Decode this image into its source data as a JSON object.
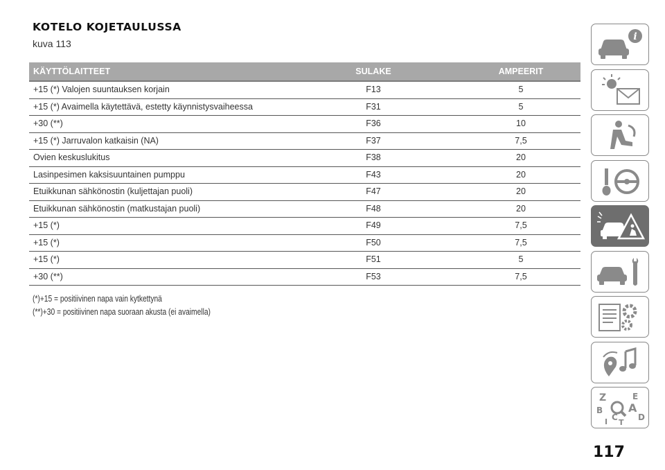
{
  "heading": {
    "title": "KOTELO KOJETAULUSSA",
    "subtitle": "kuva 113"
  },
  "table": {
    "headers": {
      "device": "KÄYTTÖLAITTEET",
      "fuse": "SULAKE",
      "ampere": "AMPEERIT"
    },
    "rows": [
      {
        "device": "+15 (*) Valojen suuntauksen korjain",
        "fuse": "F13",
        "ampere": "5"
      },
      {
        "device": "+15 (*) Avaimella käytettävä, estetty käynnistysvaiheessa",
        "fuse": "F31",
        "ampere": "5"
      },
      {
        "device": "+30 (**)",
        "fuse": "F36",
        "ampere": "10"
      },
      {
        "device": "+15 (*) Jarruvalon katkaisin (NA)",
        "fuse": "F37",
        "ampere": "7,5"
      },
      {
        "device": "Ovien keskuslukitus",
        "fuse": "F38",
        "ampere": "20"
      },
      {
        "device": "Lasinpesimen kaksisuuntainen pumppu",
        "fuse": "F43",
        "ampere": "20"
      },
      {
        "device": "Etuikkunan sähkönostin (kuljettajan puoli)",
        "fuse": "F47",
        "ampere": "20"
      },
      {
        "device": "Etuikkunan sähkönostin (matkustajan puoli)",
        "fuse": "F48",
        "ampere": "20"
      },
      {
        "device": "+15 (*)",
        "fuse": "F49",
        "ampere": "7,5"
      },
      {
        "device": "+15 (*)",
        "fuse": "F50",
        "ampere": "7,5"
      },
      {
        "device": "+15 (*)",
        "fuse": "F51",
        "ampere": "5"
      },
      {
        "device": "+30 (**)",
        "fuse": "F53",
        "ampere": "7,5"
      }
    ]
  },
  "notes": [
    "(*)+15 = positiivinen napa vain kytkettynä",
    "(**)+30 = positiivinen napa suoraan akusta (ei avaimella)"
  ],
  "sidebar": {
    "tabs": [
      {
        "icon": "car-info-icon",
        "active": false
      },
      {
        "icon": "warning-lights-icon",
        "active": false
      },
      {
        "icon": "seat-airbag-icon",
        "active": false
      },
      {
        "icon": "key-steering-wheel-icon",
        "active": false
      },
      {
        "icon": "car-breakdown-icon",
        "active": true
      },
      {
        "icon": "car-wrench-icon",
        "active": false
      },
      {
        "icon": "specs-gear-icon",
        "active": false
      },
      {
        "icon": "multimedia-icon",
        "active": false
      },
      {
        "icon": "alphabetical-index-icon",
        "active": false
      }
    ],
    "index_letters": [
      "Z",
      "E",
      "A",
      "B",
      "C",
      "D",
      "T",
      "I"
    ]
  },
  "page_number": "117",
  "colors": {
    "header_bg": "#a8a8a8",
    "active_tab": "#6e6e6e",
    "tab_border": "#888888"
  }
}
